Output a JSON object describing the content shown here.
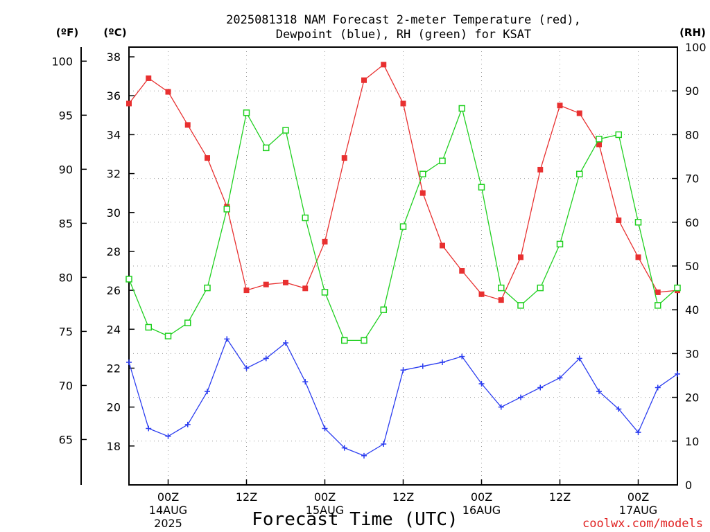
{
  "title_line1": "2025081318 NAM Forecast 2-meter Temperature (red),",
  "title_line2": "Dewpoint (blue), RH (green) for KSAT",
  "unit_f": "(ºF)",
  "unit_c": "(ºC)",
  "unit_rh": "(RH)",
  "xlabel": "Forecast Time (UTC)",
  "credit": "coolwx.com/models",
  "colors": {
    "temperature": "#e83030",
    "dewpoint": "#2a3cf0",
    "rh": "#20d020"
  },
  "chart_data": {
    "type": "line",
    "title": "2025081318 NAM Forecast 2-meter Temperature (red), Dewpoint (blue), RH (green) for KSAT",
    "xlabel": "Forecast Time (UTC)",
    "x_unit": "hours after 2025081318 UTC (3-hour steps, 0-84)",
    "x": [
      0,
      3,
      6,
      9,
      12,
      15,
      18,
      21,
      24,
      27,
      30,
      33,
      36,
      39,
      42,
      45,
      48,
      51,
      54,
      57,
      60,
      63,
      66,
      69,
      72,
      75,
      78,
      81,
      84
    ],
    "xlim": [
      0,
      84
    ],
    "x_ticks": [
      {
        "x": 6,
        "label": "00Z",
        "date": "14AUG",
        "year": "2025"
      },
      {
        "x": 18,
        "label": "12Z",
        "date": "",
        "year": ""
      },
      {
        "x": 30,
        "label": "00Z",
        "date": "15AUG",
        "year": ""
      },
      {
        "x": 42,
        "label": "12Z",
        "date": "",
        "year": ""
      },
      {
        "x": 54,
        "label": "00Z",
        "date": "16AUG",
        "year": ""
      },
      {
        "x": 66,
        "label": "12Z",
        "date": "",
        "year": ""
      },
      {
        "x": 78,
        "label": "00Z",
        "date": "17AUG",
        "year": ""
      }
    ],
    "left_axis_c": {
      "label": "(ºC)",
      "ylim": [
        16,
        38.5
      ],
      "ticks": [
        18,
        20,
        22,
        24,
        26,
        28,
        30,
        32,
        34,
        36,
        38
      ]
    },
    "left_axis_f": {
      "label": "(ºF)",
      "ticks": [
        65,
        70,
        75,
        80,
        85,
        90,
        95,
        100
      ]
    },
    "right_axis_rh": {
      "label": "(RH)",
      "ylim": [
        0,
        100
      ],
      "ticks": [
        0,
        10,
        20,
        30,
        40,
        50,
        60,
        70,
        80,
        90,
        100
      ]
    },
    "series": [
      {
        "name": "Temperature",
        "axis": "C",
        "marker": "filled-square",
        "values": [
          35.6,
          36.9,
          36.2,
          34.5,
          32.8,
          30.3,
          26.0,
          26.3,
          26.4,
          26.1,
          28.5,
          32.8,
          36.8,
          37.6,
          35.6,
          31.0,
          28.3,
          27.0,
          25.8,
          25.5,
          27.7,
          32.2,
          35.5,
          35.1,
          33.5,
          29.6,
          27.7,
          25.9,
          26.0
        ]
      },
      {
        "name": "Dewpoint",
        "axis": "C",
        "marker": "plus",
        "values": [
          22.3,
          18.9,
          18.5,
          19.1,
          20.8,
          23.5,
          22.0,
          22.5,
          23.3,
          21.3,
          18.9,
          17.9,
          17.5,
          18.1,
          21.9,
          22.1,
          22.3,
          22.6,
          21.2,
          20.0,
          20.5,
          21.0,
          21.5,
          22.5,
          20.8,
          19.9,
          18.7,
          21.0,
          21.7
        ]
      },
      {
        "name": "RH",
        "axis": "RH",
        "marker": "open-square",
        "values": [
          47,
          36,
          34,
          37,
          45,
          63,
          85,
          77,
          81,
          61,
          44,
          33,
          33,
          40,
          59,
          71,
          74,
          86,
          68,
          45,
          41,
          45,
          55,
          71,
          79,
          80,
          60,
          41,
          45
        ]
      }
    ]
  }
}
